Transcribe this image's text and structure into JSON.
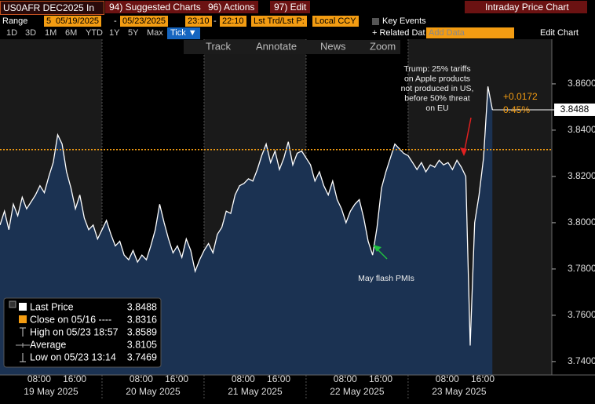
{
  "toolbar": {
    "security": "US0AFR DEC2025 In",
    "menus": [
      "94) Suggested Charts",
      "96) Actions",
      "97) Edit"
    ],
    "page_title": "Intraday Price Chart",
    "range_label": "Range",
    "range_fields": [
      "5",
      "05/19/2025",
      "-",
      "05/23/2025",
      "23:10",
      "-",
      "22:10",
      "Lst Trd/Lst P:",
      "Local CCY"
    ],
    "key_events": "Key Events",
    "periods": [
      "1D",
      "3D",
      "1M",
      "6M",
      "YTD",
      "1Y",
      "5Y",
      "Max"
    ],
    "tick_menu": "Tick ▼",
    "related": "+ Related Dat",
    "add_data": "Add Data",
    "edit_chart": "Edit Chart",
    "chart_tools": [
      "Track",
      "Annotate",
      "News",
      "Zoom"
    ]
  },
  "chart_data": {
    "type": "line",
    "area_color": "#1b3252",
    "band_colors": [
      "#1a1a1a",
      "#000000"
    ],
    "series": [
      {
        "color": "#ffffff",
        "x": [
          0,
          1,
          2,
          3,
          4,
          5,
          6,
          7,
          8,
          9,
          10,
          11,
          12,
          13,
          14,
          15,
          16,
          17,
          18,
          19,
          20,
          21,
          22,
          23,
          24,
          25,
          26,
          27,
          28,
          29,
          30,
          31,
          32,
          33,
          34,
          35,
          36,
          37,
          38,
          39,
          40,
          41,
          42,
          43,
          44,
          45,
          46,
          47,
          48,
          49,
          50,
          51,
          52,
          53,
          54,
          55,
          56,
          57,
          58,
          59,
          60,
          61,
          62,
          63,
          64,
          65,
          66,
          67,
          68,
          69,
          70,
          71,
          72,
          73,
          74,
          75,
          76,
          77,
          78,
          79,
          80,
          81,
          82,
          83,
          84,
          85,
          86,
          87,
          88,
          89,
          90,
          91,
          92,
          93,
          94,
          95,
          96,
          97,
          98,
          99,
          100,
          101,
          102,
          103,
          104,
          105,
          106,
          107,
          108,
          109,
          110,
          111
        ],
        "values": [
          3.799,
          3.805,
          3.797,
          3.808,
          3.803,
          3.811,
          3.806,
          3.809,
          3.812,
          3.816,
          3.813,
          3.82,
          3.826,
          3.838,
          3.834,
          3.822,
          3.815,
          3.806,
          3.812,
          3.802,
          3.797,
          3.799,
          3.793,
          3.797,
          3.801,
          3.795,
          3.79,
          3.792,
          3.786,
          3.784,
          3.788,
          3.783,
          3.786,
          3.784,
          3.79,
          3.797,
          3.808,
          3.8,
          3.793,
          3.787,
          3.79,
          3.785,
          3.793,
          3.788,
          3.779,
          3.784,
          3.788,
          3.791,
          3.787,
          3.795,
          3.798,
          3.805,
          3.804,
          3.812,
          3.816,
          3.817,
          3.819,
          3.818,
          3.823,
          3.829,
          3.834,
          3.826,
          3.831,
          3.823,
          3.828,
          3.835,
          3.825,
          3.83,
          3.831,
          3.828,
          3.825,
          3.818,
          3.822,
          3.816,
          3.812,
          3.818,
          3.81,
          3.806,
          3.8,
          3.805,
          3.808,
          3.81,
          3.802,
          3.792,
          3.786,
          3.798,
          3.815,
          3.822,
          3.828,
          3.834,
          3.832,
          3.83,
          3.829,
          3.826,
          3.823,
          3.826,
          3.822,
          3.825,
          3.824,
          3.827,
          3.825,
          3.826,
          3.823,
          3.827,
          3.824,
          3.82,
          3.7469,
          3.8,
          3.812,
          3.828,
          3.8589,
          3.8488
        ]
      }
    ],
    "xlim": [
      0,
      124.4
    ],
    "ylim": [
      3.7342,
      3.8793
    ],
    "xticks": [
      {
        "value": 8.83,
        "label": "08:00"
      },
      {
        "value": 16.83,
        "label": "16:00"
      },
      {
        "value": 31.83,
        "label": "08:00"
      },
      {
        "value": 39.83,
        "label": "16:00"
      },
      {
        "value": 54.83,
        "label": "08:00"
      },
      {
        "value": 62.83,
        "label": "16:00"
      },
      {
        "value": 77.83,
        "label": "08:00"
      },
      {
        "value": 85.83,
        "label": "16:00"
      },
      {
        "value": 100.83,
        "label": "08:00"
      },
      {
        "value": 108.83,
        "label": "16:00"
      }
    ],
    "date_ticks": [
      {
        "value": 0,
        "label": "19 May 2025"
      },
      {
        "value": 23,
        "label": "20 May 2025"
      },
      {
        "value": 46,
        "label": "21 May 2025"
      },
      {
        "value": 69,
        "label": "22 May 2025"
      },
      {
        "value": 92,
        "label": "23 May 2025"
      }
    ],
    "yticks": [
      {
        "value": 3.86,
        "label": "3.8600"
      },
      {
        "value": 3.84,
        "label": "3.8400"
      },
      {
        "value": 3.82,
        "label": "3.8200"
      },
      {
        "value": 3.8,
        "label": "3.8000"
      },
      {
        "value": 3.78,
        "label": "3.7800"
      },
      {
        "value": 3.76,
        "label": "3.7600"
      },
      {
        "value": 3.74,
        "label": "3.7400"
      }
    ],
    "change": "+0.0172",
    "change_pct": "0.45%",
    "annotations": [
      {
        "lines": [
          "Trump: 25% tariffs",
          "on Apple products",
          "not produced in US,",
          "before 50% threat",
          "on EU"
        ],
        "color": "#e02020"
      },
      {
        "lines": [
          "May flash PMIs"
        ],
        "color": "#20c040"
      }
    ],
    "legend": [
      {
        "label": "Last Price",
        "value": 3.8488
      },
      {
        "label": "Close on 05/16 ----",
        "value": 3.8316,
        "color": "#f39c12"
      },
      {
        "label": "High on 05/23 18:57",
        "value": 3.8589
      },
      {
        "label": "Average",
        "value": 3.8105
      },
      {
        "label": "Low on 05/23 13:14",
        "value": 3.7469
      }
    ]
  }
}
